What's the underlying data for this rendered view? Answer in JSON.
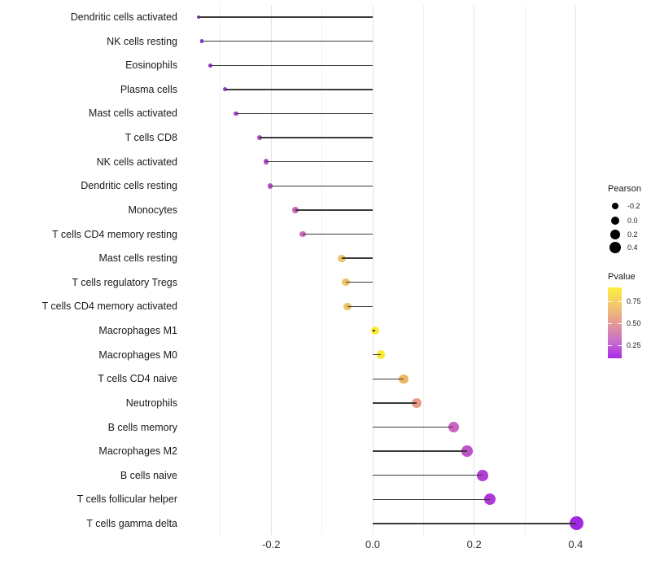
{
  "chart_data": {
    "type": "scatter",
    "subtype": "lollipop",
    "title": "",
    "xlabel": "",
    "ylabel": "",
    "xlim": [
      -0.38,
      0.45
    ],
    "x_ticks": [
      -0.2,
      0.0,
      0.2,
      0.4
    ],
    "x_tick_labels": [
      "-0.2",
      "0.0",
      "0.2",
      "0.4"
    ],
    "x_minor_gridlines": [
      -0.3,
      -0.1,
      0.1,
      0.3
    ],
    "grid": "vertical-only",
    "stem_baseline_x": 0.0,
    "points": [
      {
        "label": "Dendritic cells activated",
        "pearson": -0.343,
        "pvalue": 0.1,
        "color": "#8f2ed1"
      },
      {
        "label": "NK cells resting",
        "pearson": -0.337,
        "pvalue": 0.1,
        "color": "#9030d1"
      },
      {
        "label": "Eosinophils",
        "pearson": -0.32,
        "pvalue": 0.12,
        "color": "#9633d0"
      },
      {
        "label": "Plasma cells",
        "pearson": -0.291,
        "pvalue": 0.13,
        "color": "#9c38cf"
      },
      {
        "label": "Mast cells activated",
        "pearson": -0.269,
        "pvalue": 0.15,
        "color": "#a440cc"
      },
      {
        "label": "T cells CD8",
        "pearson": -0.223,
        "pvalue": 0.18,
        "color": "#ae4ac9"
      },
      {
        "label": "NK cells activated",
        "pearson": -0.21,
        "pvalue": 0.19,
        "color": "#b14cc8"
      },
      {
        "label": "Dendritic cells resting",
        "pearson": -0.202,
        "pvalue": 0.2,
        "color": "#b24ec7"
      },
      {
        "label": "Monocytes",
        "pearson": -0.152,
        "pvalue": 0.3,
        "color": "#cb68bd"
      },
      {
        "label": "T cells CD4 memory resting",
        "pearson": -0.138,
        "pvalue": 0.31,
        "color": "#cd6cbc"
      },
      {
        "label": "Mast cells resting",
        "pearson": -0.061,
        "pvalue": 0.67,
        "color": "#eec268"
      },
      {
        "label": "T cells regulatory  Tregs",
        "pearson": -0.053,
        "pvalue": 0.67,
        "color": "#eec368"
      },
      {
        "label": "T cells CD4 memory activated",
        "pearson": -0.05,
        "pvalue": 0.67,
        "color": "#eec368"
      },
      {
        "label": "Macrophages M1",
        "pearson": 0.005,
        "pvalue": 0.88,
        "color": "#f8eb2d"
      },
      {
        "label": "Macrophages M0",
        "pearson": 0.016,
        "pvalue": 0.87,
        "color": "#f7e934"
      },
      {
        "label": "T cells CD4 naive",
        "pearson": 0.061,
        "pvalue": 0.63,
        "color": "#edb763"
      },
      {
        "label": "Neutrophils",
        "pearson": 0.087,
        "pvalue": 0.5,
        "color": "#e79d85"
      },
      {
        "label": "B cells memory",
        "pearson": 0.159,
        "pvalue": 0.3,
        "color": "#c965c0"
      },
      {
        "label": "Macrophages M2",
        "pearson": 0.186,
        "pvalue": 0.24,
        "color": "#bd52c9"
      },
      {
        "label": "B cells naive",
        "pearson": 0.216,
        "pvalue": 0.18,
        "color": "#b23ed5"
      },
      {
        "label": "T cells follicular helper",
        "pearson": 0.231,
        "pvalue": 0.15,
        "color": "#ad37d9"
      },
      {
        "label": "T cells gamma delta",
        "pearson": 0.401,
        "pvalue": 0.1,
        "color": "#a128e2"
      }
    ],
    "legend_position": "right",
    "legends": {
      "pearson": {
        "title": "Pearson",
        "items": [
          {
            "label": "-0.2",
            "diameter": 8
          },
          {
            "label": "0.0",
            "diameter": 10
          },
          {
            "label": "0.2",
            "diameter": 12
          },
          {
            "label": "0.4",
            "diameter": 14
          }
        ]
      },
      "pvalue": {
        "title": "Pvalue",
        "tick_labels": [
          "0.75",
          "0.50",
          "0.25"
        ],
        "gradient_top_to_bottom": [
          "#fbf03a",
          "#f3c76f",
          "#e59a92",
          "#cb70cc",
          "#a92aea"
        ]
      }
    },
    "colors": {
      "stem": "#3a3a3a",
      "grid_major": "#e4e4e4",
      "grid_minor": "#efefef",
      "text": "#1a1a1a",
      "background": "#ffffff"
    }
  }
}
